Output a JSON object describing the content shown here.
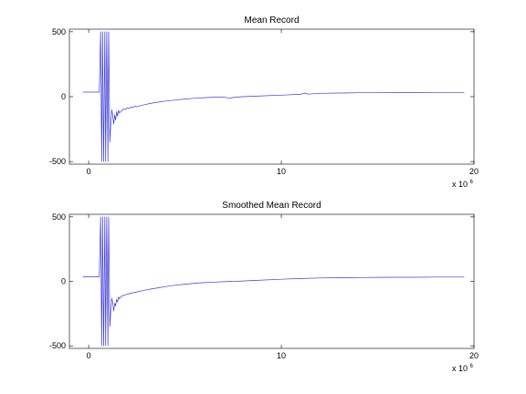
{
  "chart_data": [
    {
      "type": "line",
      "title": "Mean Record",
      "xlabel": "",
      "ylabel": "",
      "xlim": [
        -1,
        20
      ],
      "ylim": [
        -520,
        520
      ],
      "xticks": [
        0,
        10,
        20
      ],
      "xtick_labels": [
        "0",
        "10",
        "20"
      ],
      "yticks": [
        -500,
        0,
        500
      ],
      "ytick_labels": [
        "-500",
        "0",
        "500"
      ],
      "x_multiplier": "x 10",
      "x_multiplier_exponent": "6",
      "grid": false,
      "line_color": "#3b3bd6",
      "series": [
        {
          "x": [
            -0.3,
            0.55,
            0.62,
            0.68,
            0.72,
            0.78,
            0.84,
            0.88,
            0.94,
            1.0,
            1.04,
            1.1,
            1.15,
            1.2,
            1.25,
            1.3,
            1.35,
            1.4,
            1.45,
            1.5,
            1.55,
            1.6,
            1.7,
            1.8,
            1.9,
            2.0,
            2.1,
            2.2,
            2.3,
            2.4,
            2.5,
            2.7,
            2.9,
            3.2,
            3.6,
            4.0,
            4.5,
            5.0,
            5.5,
            6.0,
            6.5,
            7.0,
            7.3,
            7.5,
            8.0,
            9.0,
            10.0,
            11.0,
            11.2,
            11.4,
            12.0,
            13.0,
            14.0,
            15.0,
            16.0,
            17.0,
            18.0,
            19.0,
            19.5
          ],
          "y": [
            35,
            35,
            500,
            -500,
            500,
            -500,
            500,
            -500,
            500,
            -500,
            500,
            -350,
            -200,
            -100,
            -150,
            -210,
            -140,
            -180,
            -115,
            -150,
            -105,
            -125,
            -110,
            -95,
            -100,
            -85,
            -92,
            -78,
            -85,
            -72,
            -78,
            -68,
            -62,
            -52,
            -42,
            -34,
            -26,
            -18,
            -12,
            -8,
            -4,
            -2,
            -12,
            -6,
            0,
            6,
            12,
            18,
            28,
            20,
            26,
            28,
            30,
            30,
            32,
            32,
            33,
            33,
            33
          ]
        }
      ]
    },
    {
      "type": "line",
      "title": "Smoothed Mean Record",
      "xlabel": "",
      "ylabel": "",
      "xlim": [
        -1,
        20
      ],
      "ylim": [
        -520,
        520
      ],
      "xticks": [
        0,
        10,
        20
      ],
      "xtick_labels": [
        "0",
        "10",
        "20"
      ],
      "yticks": [
        -500,
        0,
        500
      ],
      "ytick_labels": [
        "-500",
        "0",
        "500"
      ],
      "x_multiplier": "x 10",
      "x_multiplier_exponent": "6",
      "grid": false,
      "line_color": "#3b3bd6",
      "series": [
        {
          "x": [
            -0.3,
            0.55,
            0.62,
            0.68,
            0.72,
            0.78,
            0.84,
            0.88,
            0.94,
            1.0,
            1.04,
            1.1,
            1.15,
            1.2,
            1.25,
            1.3,
            1.35,
            1.4,
            1.45,
            1.5,
            1.55,
            1.6,
            1.7,
            1.8,
            1.9,
            2.0,
            2.2,
            2.5,
            2.8,
            3.2,
            3.6,
            4.0,
            4.5,
            5.0,
            5.5,
            6.0,
            6.5,
            7.0,
            8.0,
            9.0,
            10.0,
            11.0,
            12.0,
            13.0,
            14.0,
            15.0,
            16.0,
            17.0,
            18.0,
            19.0,
            19.5
          ],
          "y": [
            35,
            35,
            500,
            -500,
            500,
            -500,
            500,
            -500,
            500,
            -500,
            500,
            -350,
            -220,
            -130,
            -170,
            -230,
            -170,
            -190,
            -140,
            -160,
            -120,
            -135,
            -115,
            -110,
            -105,
            -100,
            -92,
            -82,
            -72,
            -60,
            -50,
            -40,
            -30,
            -22,
            -15,
            -10,
            -6,
            -3,
            3,
            10,
            16,
            22,
            26,
            28,
            30,
            31,
            32,
            32,
            33,
            33,
            33
          ]
        }
      ]
    }
  ]
}
